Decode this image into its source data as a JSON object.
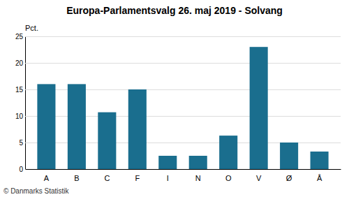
{
  "chart_data": {
    "type": "bar",
    "title": "Europa-Parlamentsvalg 26. maj 2019 - Solvang",
    "categories": [
      "A",
      "B",
      "C",
      "F",
      "I",
      "N",
      "O",
      "V",
      "Ø",
      "Å"
    ],
    "values": [
      16.0,
      16.0,
      10.7,
      15.0,
      2.5,
      2.5,
      6.3,
      23.0,
      5.0,
      3.3
    ],
    "color": "#1a6e8e",
    "ylabel": "Pct.",
    "footer": "© Danmarks Statistik",
    "ylim": [
      0,
      25
    ],
    "yticks": [
      0,
      5,
      10,
      15,
      20,
      25
    ],
    "grid": true
  }
}
